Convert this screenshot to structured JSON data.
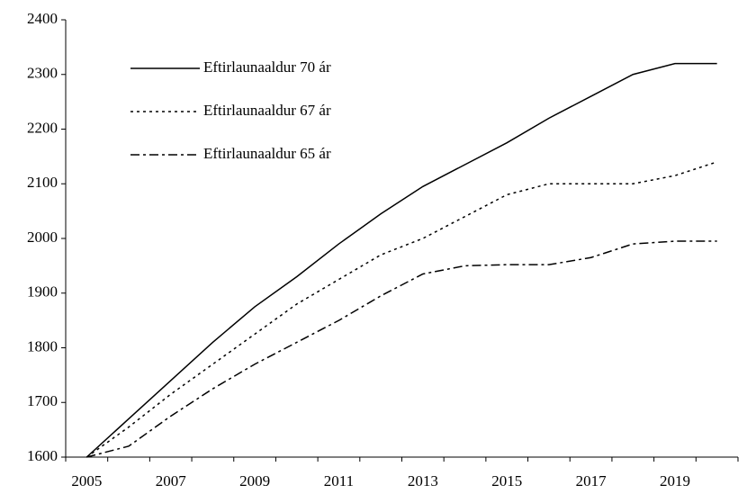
{
  "chart_data": {
    "type": "line",
    "categories": [
      "2005",
      null,
      "2007",
      null,
      "2009",
      null,
      "2011",
      null,
      "2013",
      null,
      "2015",
      null,
      "2017",
      null,
      "2019",
      null
    ],
    "series": [
      {
        "name": "Eftirlaunaaldur 70 ár",
        "color": "#000000",
        "dash": "solid",
        "values": [
          1600,
          1670,
          1740,
          1810,
          1875,
          1930,
          1990,
          2045,
          2095,
          2135,
          2175,
          2220,
          2260,
          2300,
          2320,
          2320
        ]
      },
      {
        "name": "Eftirlaunaaldur 67 ár",
        "color": "#000000",
        "dash": "dotted",
        "values": [
          1600,
          1655,
          1715,
          1770,
          1825,
          1880,
          1925,
          1970,
          2000,
          2040,
          2080,
          2100,
          2100,
          2100,
          2115,
          2140
        ]
      },
      {
        "name": "Eftirlaunaaldur 65 ár",
        "color": "#000000",
        "dash": "dashdot",
        "values": [
          1600,
          1620,
          1675,
          1725,
          1770,
          1810,
          1850,
          1895,
          1935,
          1950,
          1952,
          1952,
          1965,
          1990,
          1995,
          1995
        ]
      }
    ],
    "ylim": [
      1600,
      2400
    ],
    "yticks": [
      1600,
      1700,
      1800,
      1900,
      2000,
      2100,
      2200,
      2300,
      2400
    ],
    "grid": false,
    "legend": "top-left"
  }
}
